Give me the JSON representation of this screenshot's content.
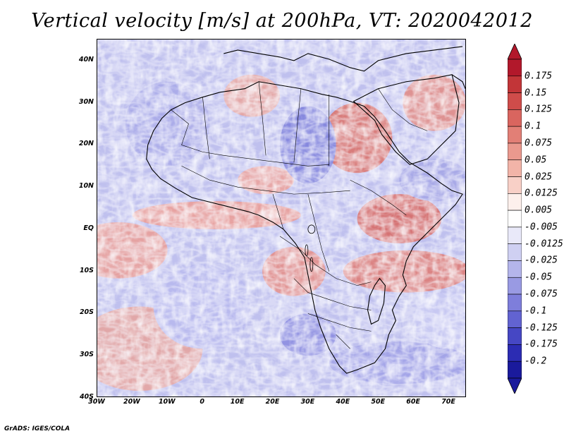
{
  "title": "Vertical velocity [m/s] at 200hPa, VT: 2020042012",
  "credit": "GrADS: IGES/COLA",
  "map": {
    "lat_ticks": [
      "40N",
      "30N",
      "20N",
      "10N",
      "EQ",
      "10S",
      "20S",
      "30S",
      "40S"
    ],
    "lat_values": [
      40,
      30,
      20,
      10,
      0,
      -10,
      -20,
      -30,
      -40
    ],
    "lon_ticks": [
      "30W",
      "20W",
      "10W",
      "0",
      "10E",
      "20E",
      "30E",
      "40E",
      "50E",
      "60E",
      "70E"
    ],
    "lon_values": [
      -30,
      -20,
      -10,
      0,
      10,
      20,
      30,
      40,
      50,
      60,
      70
    ],
    "lon_range": [
      -30,
      75
    ],
    "lat_range": [
      -40,
      45
    ]
  },
  "colorbar": {
    "labels": [
      "0.175",
      "0.15",
      "0.125",
      "0.1",
      "0.075",
      "0.05",
      "0.025",
      "0.0125",
      "0.005",
      "-0.005",
      "-0.0125",
      "-0.025",
      "-0.05",
      "-0.075",
      "-0.1",
      "-0.125",
      "-0.175",
      "-0.2"
    ],
    "colors": [
      "#b2182b",
      "#c23538",
      "#cf4c4a",
      "#d9655f",
      "#e27f76",
      "#ea998e",
      "#f2b4a8",
      "#f8d0c7",
      "#fdf0ec",
      "#ffffff",
      "#e9e9f9",
      "#cfd0f2",
      "#b4b5eb",
      "#999ae3",
      "#7e7edb",
      "#6263d1",
      "#4647c4",
      "#2c2cb3",
      "#1a1a9c"
    ],
    "top_arrow_color": "#b2182b",
    "bottom_arrow_color": "#1a1a9c"
  }
}
